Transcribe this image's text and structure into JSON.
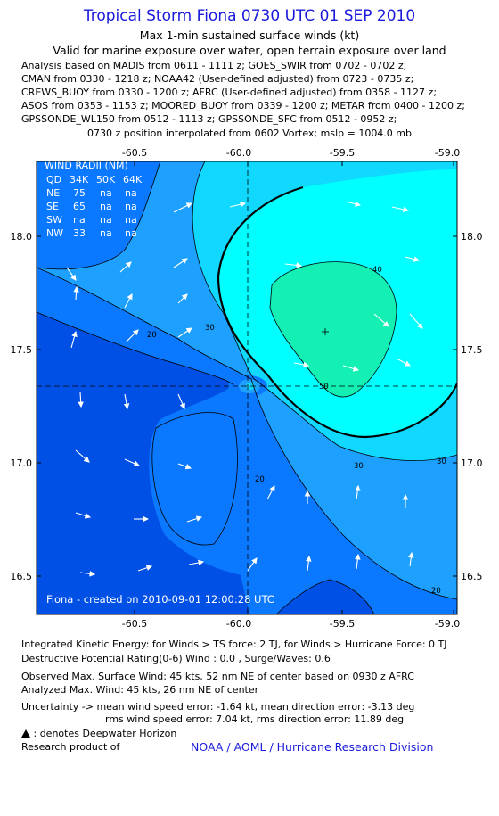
{
  "header": {
    "title": "Tropical Storm Fiona 0730 UTC 01 SEP 2010",
    "subtitle1": "Max 1-min sustained surface winds (kt)",
    "subtitle2": "Valid for marine exposure over water, open terrain exposure over land",
    "analysis_lines": [
      "Analysis based on MADIS from 0611 - 1111 z; GOES_SWIR from 0702 - 0702 z;",
      "CMAN from 0330 - 1218 z; NOAA42 (User-defined adjusted) from 0723 - 0735 z;",
      "CREWS_BUOY from 0330 - 1200 z; AFRC (User-defined adjusted) from 0358 - 1127 z;",
      "ASOS from 0353 - 1153 z; MOORED_BUOY from 0339 - 1200 z; METAR from 0400 - 1200 z;",
      "GPSSONDE_WL150 from 0512 - 1113 z; GPSSONDE_SFC from 0512 - 0952 z;"
    ],
    "position_note": "0730 z position interpolated from 0602 Vortex; mslp = 1004.0 mb"
  },
  "map": {
    "lon_ticks": [
      "-60.5",
      "-60.0",
      "-59.5",
      "-59.0"
    ],
    "lat_ticks": [
      "18.0",
      "17.5",
      "17.0",
      "16.5"
    ],
    "center": {
      "lon": -60.0,
      "lat": 17.33
    },
    "analyzed_max_point": {
      "lon": -59.6,
      "lat": 17.58
    },
    "contour_labels": [
      "20",
      "30",
      "40",
      "50",
      "30",
      "30",
      "20",
      "20"
    ],
    "colors": {
      "lt20": "#0050e6",
      "20_30": "#0a78ff",
      "30_40": "#1ea0ff",
      "40_50": "#10d8ff",
      "50_60": "#00ffff",
      "gt60": "#14f0b4"
    },
    "credit": "Fiona - created on 2010-09-01 12:00:28 UTC"
  },
  "wind_radii": {
    "title": "WIND RADII (NM)",
    "columns": [
      "QD",
      "34K",
      "50K",
      "64K"
    ],
    "rows": [
      [
        "NE",
        "75",
        "na",
        "na"
      ],
      [
        "SE",
        "65",
        "na",
        "na"
      ],
      [
        "SW",
        "na",
        "na",
        "na"
      ],
      [
        "NW",
        "33",
        "na",
        "na"
      ]
    ]
  },
  "footer": {
    "ike": "Integrated Kinetic Energy:  for Winds > TS force: 2 TJ,  for Winds > Hurricane Force: 0 TJ",
    "dpr": "Destructive Potential Rating(0-6)   Wind : 0.0 , Surge/Waves: 0.6",
    "observed": "Observed Max. Surface Wind: 45 kts, 52 nm NE of center based on 0930 z AFRC",
    "analyzed": "Analyzed Max. Wind: 45 kts, 26 nm NE of center",
    "uncert1": "Uncertainty -> mean wind speed error:  -1.64 kt,   mean direction error:  -3.13 deg",
    "uncert2": "rms wind speed error: 7.04 kt,   rms direction error: 11.89 deg",
    "deepwater": ": denotes Deepwater Horizon",
    "research": "Research product of",
    "agency": "NOAA / AOML / Hurricane Research Division"
  }
}
